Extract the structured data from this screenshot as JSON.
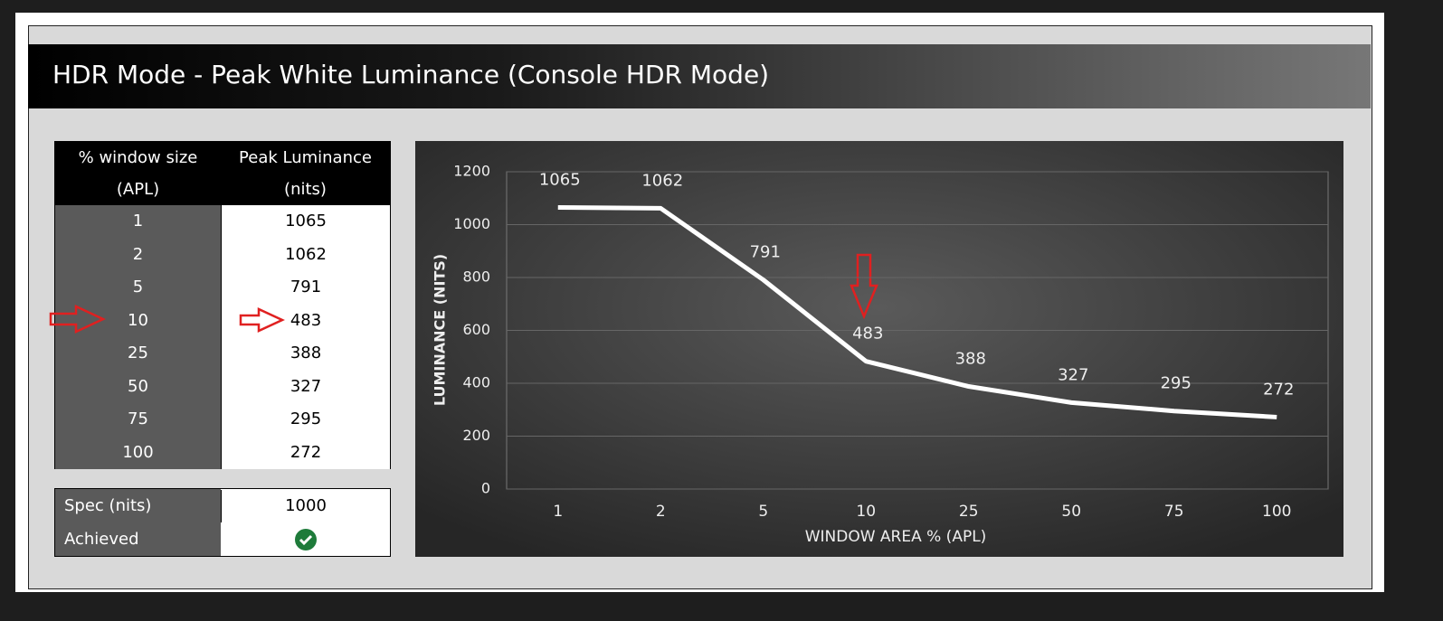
{
  "header": {
    "title": "HDR Mode - Peak White Luminance (Console HDR Mode)"
  },
  "table": {
    "columns": [
      [
        "% window size",
        "(APL)"
      ],
      [
        "Peak Luminance",
        "(nits)"
      ]
    ],
    "rows": [
      [
        "1",
        "1065"
      ],
      [
        "2",
        "1062"
      ],
      [
        "5",
        "791"
      ],
      [
        "10",
        "483"
      ],
      [
        "25",
        "388"
      ],
      [
        "50",
        "327"
      ],
      [
        "75",
        "295"
      ],
      [
        "100",
        "272"
      ]
    ]
  },
  "spec": {
    "label": "Spec (nits)",
    "value": "1000",
    "achieved_label": "Achieved"
  },
  "chart_data": {
    "type": "line",
    "categories": [
      "1",
      "2",
      "5",
      "10",
      "25",
      "50",
      "75",
      "100"
    ],
    "values": [
      1065,
      1062,
      791,
      483,
      388,
      327,
      295,
      272
    ],
    "color": "#ffffff",
    "x_label": "WINDOW AREA % (APL)",
    "y_label": "LUMINANCE (NITS)",
    "ylim": [
      0,
      1200
    ],
    "yticks": [
      0,
      200,
      400,
      600,
      800,
      1000,
      1200
    ],
    "grid": true
  }
}
